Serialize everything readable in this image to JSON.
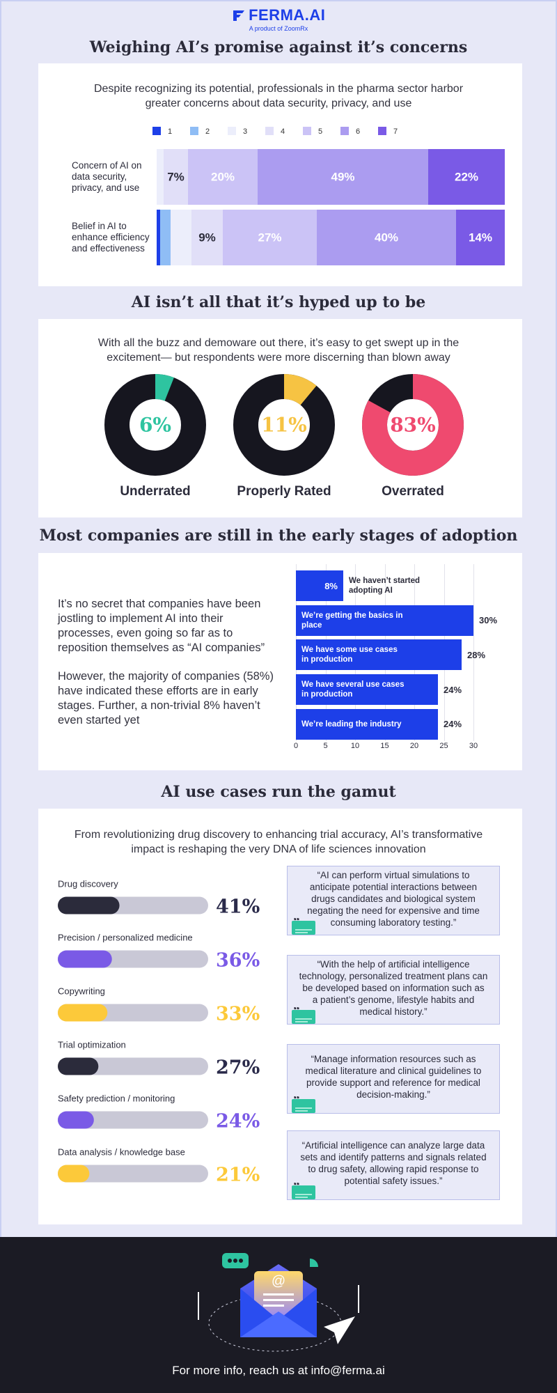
{
  "header": {
    "logo": "FERMA.AI",
    "tagline": "A product of ZoomRx"
  },
  "sections": [
    {
      "title": "Weighing AI’s promise against it’s concerns",
      "subtitle": "Despite recognizing its potential, professionals in the pharma sector harbor greater concerns about data security, privacy, and use"
    },
    {
      "title": "AI isn’t all that it’s hyped up to be",
      "subtitle": "With all the buzz and demoware out there, it’s easy to get swept up in the excitement— but respondents were more discerning than blown away"
    },
    {
      "title": "Most companies are still in the early stages of adoption",
      "paragraphs": [
        "It’s no secret that companies have been jostling to implement AI into their processes, even going so far as to reposition themselves as “AI companies”",
        "However, the majority of companies (58%) have indicated these efforts are in early stages. Further, a non-trivial 8% haven’t even started yet"
      ]
    },
    {
      "title": "AI use cases run the gamut",
      "subtitle": "From revolutionizing drug discovery to enhancing trial accuracy, AI’s transformative impact is reshaping the very DNA of life sciences innovation",
      "quotes": [
        "“AI can perform virtual simulations to anticipate potential interactions between drugs candidates and biological system negating the need for expensive and time consuming laboratory testing.”",
        "“With the help of artificial intelligence technology, personalized treatment plans can be developed based on information such as a patient’s genome, lifestyle habits and medical history.”",
        "“Manage information resources such as medical literature and clinical guidelines to provide support and reference for medical decision-making.”",
        "“Artificial intelligence can analyze large data sets and identify patterns and signals related to drug safety, allowing rapid response to potential safety issues.”"
      ]
    }
  ],
  "chart_data": [
    {
      "type": "stacked_bar",
      "orientation": "horizontal",
      "categories": [
        "Concern of AI on data security, privacy, and use",
        "Belief in AI to enhance efficiency and effectiveness"
      ],
      "series": [
        {
          "name": "1",
          "color": "#1d3fe8",
          "values": [
            0,
            1
          ]
        },
        {
          "name": "2",
          "color": "#8fbdf5",
          "values": [
            0,
            3
          ]
        },
        {
          "name": "3",
          "color": "#eceefb",
          "values": [
            2,
            6
          ]
        },
        {
          "name": "4",
          "color": "#e1dff8",
          "values": [
            7,
            9
          ],
          "value_labels": [
            "7%",
            "9%"
          ]
        },
        {
          "name": "5",
          "color": "#cbc3f6",
          "values": [
            20,
            27
          ],
          "value_labels": [
            "20%",
            "27%"
          ]
        },
        {
          "name": "6",
          "color": "#ab9cf0",
          "values": [
            49,
            40
          ],
          "value_labels": [
            "49%",
            "40%"
          ]
        },
        {
          "name": "7",
          "color": "#7a5ae6",
          "values": [
            22,
            14
          ],
          "value_labels": [
            "22%",
            "14%"
          ]
        }
      ],
      "xlim": [
        0,
        100
      ],
      "legend": "top"
    },
    {
      "type": "donut",
      "categories": [
        "Underrated",
        "Properly Rated",
        "Overrated"
      ],
      "values": [
        6,
        11,
        83
      ],
      "value_labels": [
        "6%",
        "11%",
        "83%"
      ],
      "colors": [
        "#2ec4a0",
        "#f6c343",
        "#ef4a6f"
      ],
      "track_color": "#16161f"
    },
    {
      "type": "bar",
      "orientation": "horizontal",
      "categories": [
        "We haven’t started adopting AI",
        "We’re getting the basics in place",
        "We have some use cases in production",
        "We have several use cases in production",
        "We’re leading the industry"
      ],
      "values": [
        8,
        30,
        28,
        24,
        24
      ],
      "value_labels": [
        "8%",
        "30%",
        "28%",
        "24%",
        "24%"
      ],
      "color": "#1d3fe8",
      "xlim": [
        0,
        30
      ],
      "xticks": [
        0,
        5,
        10,
        15,
        20,
        25,
        30
      ],
      "grid": true
    },
    {
      "type": "progress",
      "categories": [
        "Drug discovery",
        "Precision / personalized medicine",
        "Copywriting",
        "Trial optimization",
        "Safety prediction / monitoring",
        "Data analysis / knowledge base"
      ],
      "values": [
        41,
        36,
        33,
        27,
        24,
        21
      ],
      "value_labels": [
        "41%",
        "36%",
        "33%",
        "27%",
        "24%",
        "21%"
      ],
      "colors": [
        "#2b2b3b",
        "#7a5ae6",
        "#fcc93a",
        "#2b2b3b",
        "#7a5ae6",
        "#fcc93a"
      ],
      "xlim": [
        0,
        100
      ],
      "track_color": "#c9c8d6"
    }
  ],
  "footer": {
    "text": "For more info, reach us at info@ferma.ai"
  }
}
